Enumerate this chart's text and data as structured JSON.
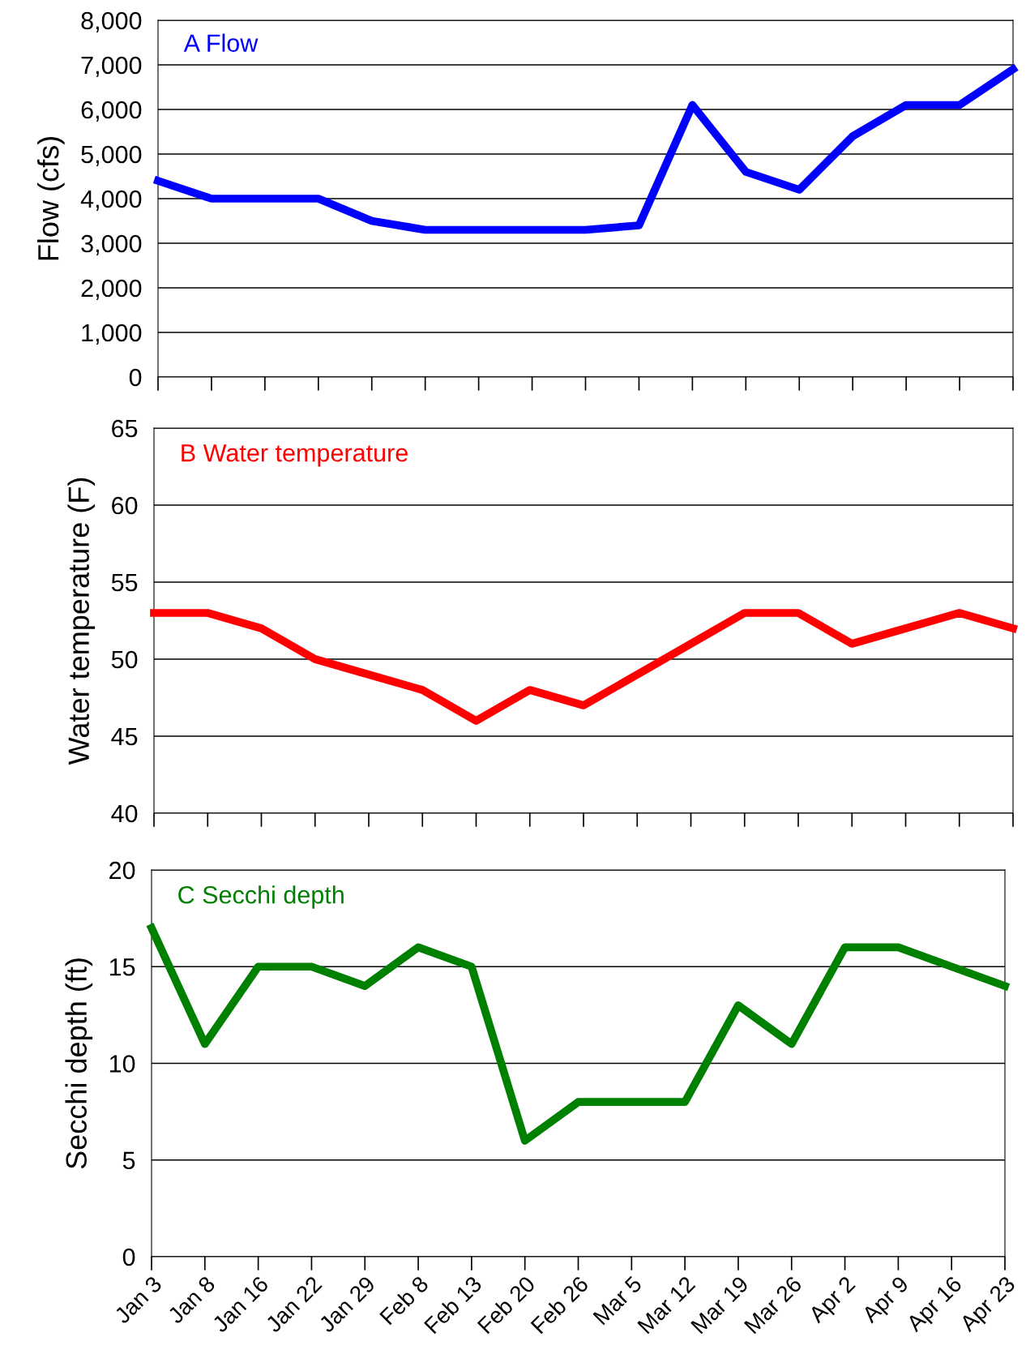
{
  "chart_data": [
    {
      "type": "line",
      "ylabel": "Flow (cfs)",
      "annotations": [
        "A Flow"
      ],
      "categories": [
        null,
        null,
        null,
        null,
        null,
        null,
        null,
        null,
        null,
        null,
        null,
        null,
        null,
        null,
        null,
        null,
        null
      ],
      "series": [
        {
          "color": "#0000ff",
          "values": [
            4400,
            4000,
            4000,
            4000,
            3500,
            3300,
            3300,
            3300,
            3300,
            3400,
            6100,
            4600,
            4200,
            5400,
            6100,
            6100,
            6900
          ]
        }
      ],
      "ylim": [
        0,
        8000
      ],
      "yticks": [
        {
          "value": 0,
          "label": "0"
        },
        {
          "value": 1000,
          "label": "1,000"
        },
        {
          "value": 2000,
          "label": "2,000"
        },
        {
          "value": 3000,
          "label": "3,000"
        },
        {
          "value": 4000,
          "label": "4,000"
        },
        {
          "value": 5000,
          "label": "5,000"
        },
        {
          "value": 6000,
          "label": "6,000"
        },
        {
          "value": 7000,
          "label": "7,000"
        },
        {
          "value": 8000,
          "label": "8,000"
        }
      ],
      "grid": "y",
      "tick_labels": "y",
      "marker": "none",
      "line_style": "solid"
    },
    {
      "type": "line",
      "ylabel": "Water temperature (F)",
      "annotations": [
        "B Water temperature"
      ],
      "categories": [
        null,
        null,
        null,
        null,
        null,
        null,
        null,
        null,
        null,
        null,
        null,
        null,
        null,
        null,
        null,
        null,
        null
      ],
      "series": [
        {
          "color": "#ff0000",
          "values": [
            53,
            53,
            52,
            50,
            49,
            48,
            46,
            48,
            47,
            49,
            51,
            53,
            53,
            51,
            52,
            53,
            52
          ]
        }
      ],
      "ylim": [
        40,
        65
      ],
      "yticks": [
        40,
        45,
        50,
        55,
        60,
        65
      ],
      "grid": "y",
      "tick_labels": "y",
      "marker": "none",
      "line_style": "solid"
    },
    {
      "type": "line",
      "ylabel": "Secchi depth (ft)",
      "annotations": [
        "C Secchi depth"
      ],
      "categories": [
        "Jan 3",
        "Jan 8",
        "Jan 16",
        "Jan 22",
        "Jan 29",
        "Feb 8",
        "Feb 13",
        "Feb 20",
        "Feb 26",
        "Mar 5",
        "Mar 12",
        "Mar 19",
        "Mar 26",
        "Apr 2",
        "Apr 9",
        "Apr 16",
        "Apr 23"
      ],
      "series": [
        {
          "color": "#008000",
          "values": [
            17,
            11,
            15,
            15,
            14,
            16,
            15,
            6,
            8,
            8,
            8,
            13,
            11,
            16,
            16,
            15,
            14
          ]
        }
      ],
      "ylim": [
        0,
        20
      ],
      "yticks": [
        0,
        5,
        10,
        15,
        20
      ],
      "grid": "y",
      "marker": "none",
      "line_style": "solid"
    }
  ]
}
